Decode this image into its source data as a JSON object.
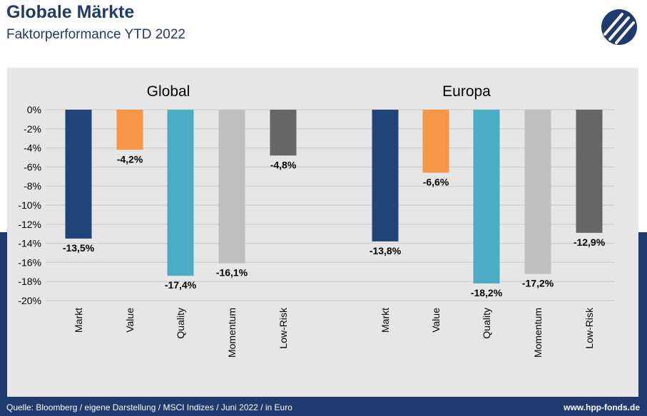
{
  "header": {
    "title": "Globale Märkte",
    "subtitle": "Faktorperformance YTD 2022",
    "logo_icon": "hpp-logo-icon"
  },
  "footer": {
    "source": "Quelle: Bloomberg / eigene Darstellung / MSCI Indizes / Juni 2022 / in Euro",
    "website": "www.hpp-fonds.de"
  },
  "colors": {
    "navy": "#1f3a6e",
    "panel": "#e6e6e6",
    "Markt": "#1f4478",
    "Value": "#f79646",
    "Quality": "#4bacc6",
    "Momentum": "#bfbfbf",
    "Low-Risk": "#666666"
  },
  "chart_data": [
    {
      "type": "bar",
      "title": "Global",
      "categories": [
        "Markt",
        "Value",
        "Quality",
        "Momentum",
        "Low-Risk"
      ],
      "values": [
        -13.5,
        -4.2,
        -17.4,
        -16.1,
        -4.8
      ],
      "value_labels": [
        "-13,5%",
        "-4,2%",
        "-17,4%",
        "-16,1%",
        "-4,8%"
      ],
      "ylim": [
        -20,
        0
      ],
      "yticks": [
        "0%",
        "-2%",
        "-4%",
        "-6%",
        "-8%",
        "-10%",
        "-12%",
        "-14%",
        "-16%",
        "-18%",
        "-20%"
      ],
      "grid": true,
      "legend": "none"
    },
    {
      "type": "bar",
      "title": "Europa",
      "categories": [
        "Markt",
        "Value",
        "Quality",
        "Momentum",
        "Low-Risk"
      ],
      "values": [
        -13.8,
        -6.6,
        -18.2,
        -17.2,
        -12.9
      ],
      "value_labels": [
        "-13,8%",
        "-6,6%",
        "-18,2%",
        "-17,2%",
        "-12,9%"
      ],
      "ylim": [
        -20,
        0
      ],
      "grid": true,
      "legend": "none"
    }
  ]
}
